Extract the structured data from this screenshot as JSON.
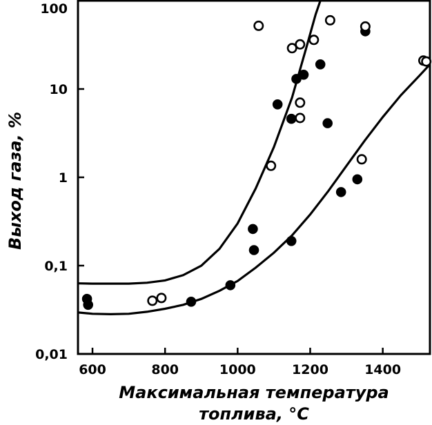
{
  "chart_data": {
    "type": "scatter",
    "title": "",
    "xlabel_line1": "Максимальная температура",
    "xlabel_line2": "топлива, °C",
    "ylabel": "Выход газа, %",
    "xlim": [
      560,
      1530
    ],
    "ylim": [
      0.01,
      100
    ],
    "yscale": "log",
    "grid": false,
    "x_ticks": [
      {
        "value": 600,
        "label": "600"
      },
      {
        "value": 800,
        "label": "800"
      },
      {
        "value": 1000,
        "label": "1000"
      },
      {
        "value": 1200,
        "label": "1200"
      },
      {
        "value": 1400,
        "label": "1400"
      }
    ],
    "y_ticks": [
      {
        "value": 0.01,
        "label": "0,01"
      },
      {
        "value": 0.1,
        "label": "0,1"
      },
      {
        "value": 1,
        "label": "1"
      },
      {
        "value": 10,
        "label": "10"
      },
      {
        "value": 100,
        "label": "100"
      }
    ],
    "series": [
      {
        "marker": "filled-circle",
        "points": [
          [
            585,
            0.042
          ],
          [
            588,
            0.036
          ],
          [
            872,
            0.039
          ],
          [
            980,
            0.06
          ],
          [
            1042,
            0.26
          ],
          [
            1045,
            0.15
          ],
          [
            1110,
            6.7
          ],
          [
            1148,
            4.6
          ],
          [
            1148,
            0.19
          ],
          [
            1162,
            13
          ],
          [
            1182,
            14.5
          ],
          [
            1228,
            19
          ],
          [
            1248,
            4.1
          ],
          [
            1285,
            0.68
          ],
          [
            1330,
            0.95
          ],
          [
            1352,
            45
          ]
        ]
      },
      {
        "marker": "open-circle",
        "points": [
          [
            765,
            0.04
          ],
          [
            790,
            0.043
          ],
          [
            1058,
            52
          ],
          [
            1092,
            1.35
          ],
          [
            1150,
            29
          ],
          [
            1172,
            32
          ],
          [
            1210,
            36
          ],
          [
            1255,
            60
          ],
          [
            1172,
            7
          ],
          [
            1172,
            4.7
          ],
          [
            1342,
            1.6
          ],
          [
            1352,
            51
          ],
          [
            1512,
            21
          ],
          [
            1520,
            20.5
          ]
        ]
      }
    ],
    "curves": [
      {
        "name": "upper-envelope",
        "points": [
          [
            560,
            0.063
          ],
          [
            600,
            0.0625
          ],
          [
            700,
            0.0625
          ],
          [
            750,
            0.064
          ],
          [
            800,
            0.068
          ],
          [
            850,
            0.078
          ],
          [
            900,
            0.1
          ],
          [
            950,
            0.155
          ],
          [
            1000,
            0.3
          ],
          [
            1050,
            0.75
          ],
          [
            1100,
            2.2
          ],
          [
            1150,
            8
          ],
          [
            1190,
            30
          ],
          [
            1215,
            70
          ],
          [
            1228,
            100
          ]
        ]
      },
      {
        "name": "lower-envelope",
        "points": [
          [
            560,
            0.0295
          ],
          [
            600,
            0.0285
          ],
          [
            650,
            0.0282
          ],
          [
            700,
            0.0285
          ],
          [
            750,
            0.03
          ],
          [
            800,
            0.0325
          ],
          [
            850,
            0.036
          ],
          [
            900,
            0.042
          ],
          [
            950,
            0.052
          ],
          [
            1000,
            0.067
          ],
          [
            1050,
            0.095
          ],
          [
            1100,
            0.14
          ],
          [
            1150,
            0.22
          ],
          [
            1200,
            0.38
          ],
          [
            1250,
            0.7
          ],
          [
            1300,
            1.35
          ],
          [
            1350,
            2.6
          ],
          [
            1400,
            4.8
          ],
          [
            1450,
            8.5
          ],
          [
            1500,
            14
          ],
          [
            1530,
            19
          ]
        ]
      }
    ]
  }
}
